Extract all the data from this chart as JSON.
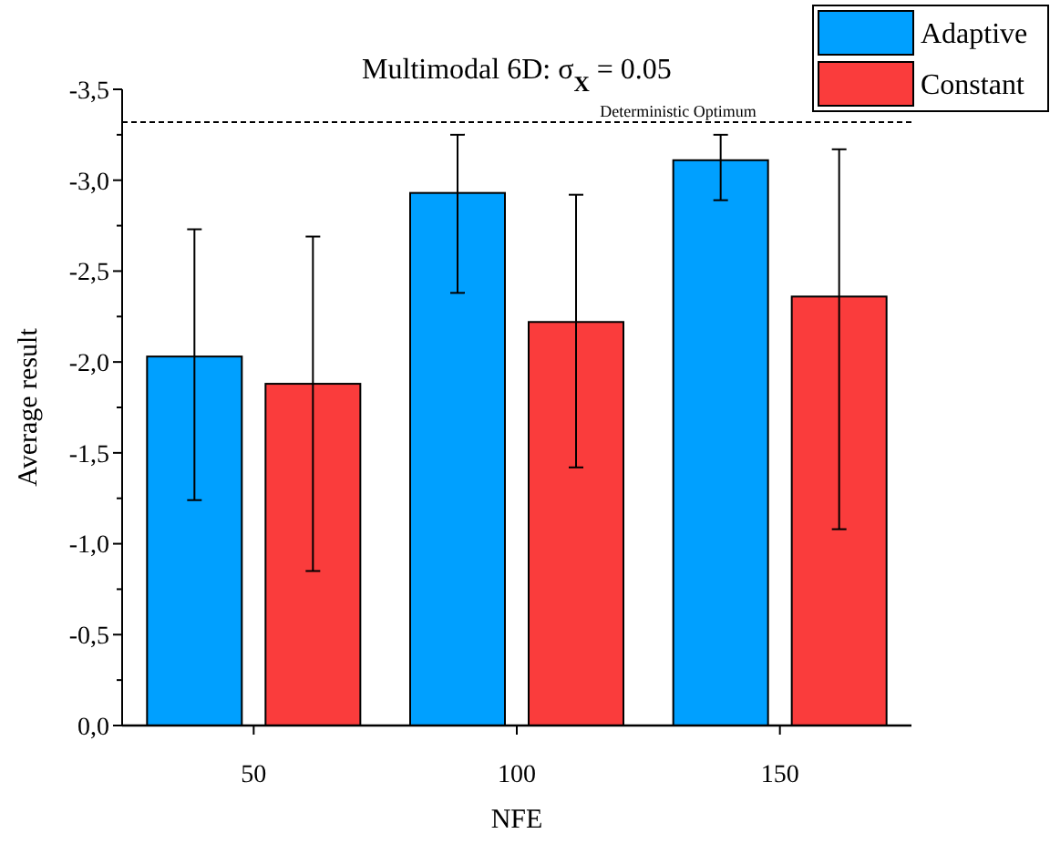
{
  "chart_data": {
    "type": "bar",
    "title": "Multimodal 6D: σ$_{X}$ = 0.05",
    "xlabel": "NFE",
    "ylabel": "Average result",
    "categories": [
      "50",
      "100",
      "150"
    ],
    "series": [
      {
        "name": "Adaptive",
        "color": "#00a0ff",
        "values": [
          -2.03,
          -2.93,
          -3.11
        ],
        "errors": [
          [
            -2.73,
            -1.24
          ],
          [
            -3.25,
            -2.38
          ],
          [
            -3.25,
            -2.89
          ]
        ]
      },
      {
        "name": "Constant",
        "color": "#fa3c3c",
        "values": [
          -1.88,
          -2.22,
          -2.36
        ],
        "errors": [
          [
            -2.69,
            -0.85
          ],
          [
            -2.92,
            -1.42
          ],
          [
            -3.17,
            -1.08
          ]
        ]
      }
    ],
    "ylim": [
      0,
      -3.5
    ],
    "yticks": [
      {
        "value": 0,
        "label": "0,0"
      },
      {
        "value": -0.25,
        "label": null
      },
      {
        "value": -0.5,
        "label": "-0,5"
      },
      {
        "value": -0.75,
        "label": null
      },
      {
        "value": -1,
        "label": "-1,0"
      },
      {
        "value": -1.25,
        "label": null
      },
      {
        "value": -1.5,
        "label": "-1,5"
      },
      {
        "value": -1.75,
        "label": null
      },
      {
        "value": -2,
        "label": "-2,0"
      },
      {
        "value": -2.25,
        "label": null
      },
      {
        "value": -2.5,
        "label": "-2,5"
      },
      {
        "value": -2.75,
        "label": null
      },
      {
        "value": -3,
        "label": "-3,0"
      },
      {
        "value": -3.25,
        "label": null
      },
      {
        "value": -3.5,
        "label": "-3,5"
      }
    ],
    "ref_lines": [
      {
        "axis": "y",
        "value": -3.32,
        "label": "Deterministic Optimum",
        "line_style": "dashed"
      }
    ],
    "legend": "top right",
    "grid": false
  }
}
